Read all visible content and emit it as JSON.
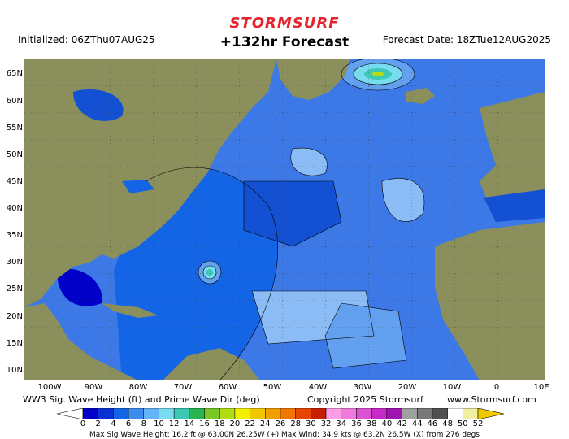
{
  "header": {
    "brand": "STORMSURF",
    "title": "+132hr Forecast",
    "initialized": "Initialized: 06ZThu07AUG25",
    "forecast_date": "Forecast Date: 18ZTue12AUG2025"
  },
  "axes": {
    "lat_labels": [
      "65N",
      "60N",
      "55N",
      "50N",
      "45N",
      "40N",
      "35N",
      "30N",
      "25N",
      "20N",
      "15N",
      "10N"
    ],
    "lon_labels": [
      "100W",
      "90W",
      "80W",
      "70W",
      "60W",
      "50W",
      "40W",
      "30W",
      "20W",
      "10W",
      "0",
      "10E"
    ]
  },
  "footer": {
    "left": "WW3 Sig. Wave Height (ft) and Prime Wave Dir (deg)",
    "center": "Copyright 2025 Stormsurf",
    "right": "www.Stormsurf.com",
    "stats": "Max Sig Wave Height: 16.2 ft @ 63.00N 26.25W (+)    Max Wind: 34.9 kts @ 63.2N 26.5W (X) from 276 degs"
  },
  "colorbar": {
    "ticks": [
      "0",
      "2",
      "4",
      "6",
      "8",
      "10",
      "12",
      "14",
      "16",
      "18",
      "20",
      "22",
      "24",
      "26",
      "28",
      "30",
      "32",
      "34",
      "36",
      "38",
      "40",
      "42",
      "44",
      "46",
      "48",
      "50",
      "52"
    ],
    "colors": [
      "#0000c8",
      "#0a32d2",
      "#1464e6",
      "#3c8cf0",
      "#64b4fa",
      "#78dcf0",
      "#3cc8b4",
      "#28b450",
      "#78c828",
      "#b4dc14",
      "#f0f000",
      "#f0c800",
      "#f0a000",
      "#f07800",
      "#e64600",
      "#c81e00",
      "#ff9ee6",
      "#f07adc",
      "#dc50d2",
      "#c828c8",
      "#a014b4",
      "#a0a0a0",
      "#787878",
      "#505050",
      "#ffffff",
      "#f0f0a0"
    ]
  },
  "colors": {
    "land": "#8a8f5c",
    "ocean_deep": "#1450d2",
    "ocean_mid": "#3c78e6",
    "ocean_light": "#64a0f0",
    "ocean_pale": "#8cbcf5"
  }
}
